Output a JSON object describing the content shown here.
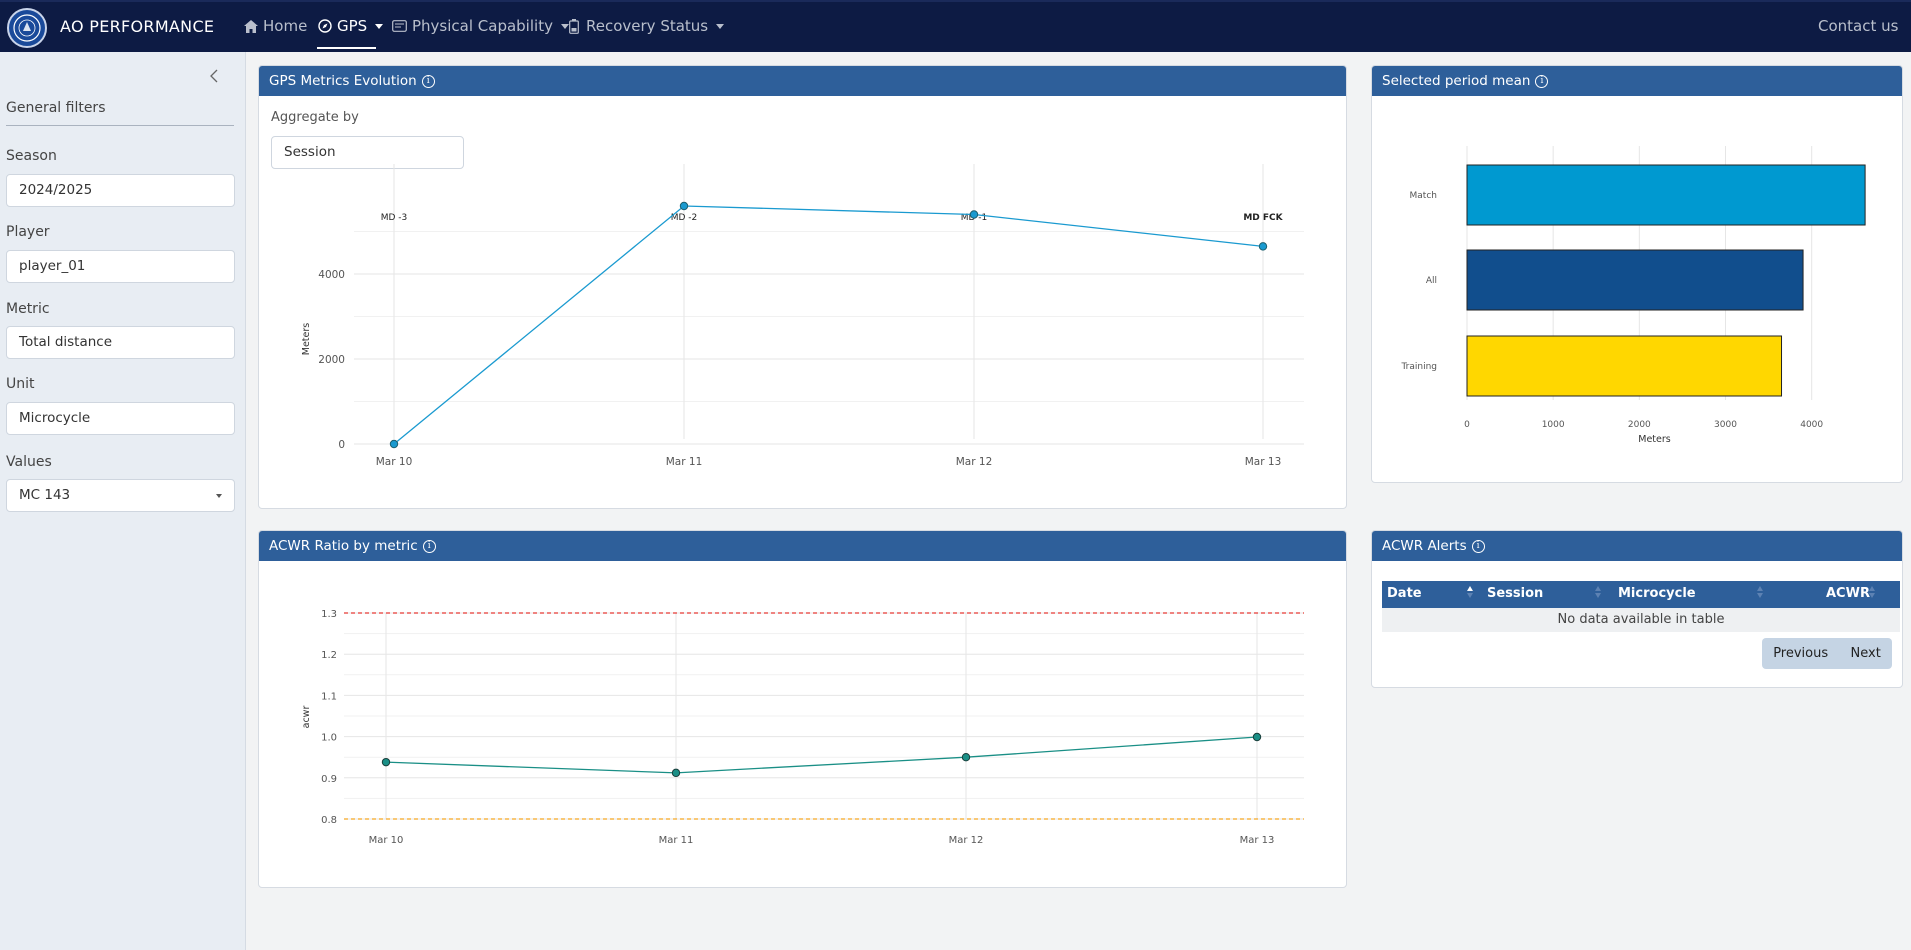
{
  "navbar": {
    "brand": "AO PERFORMANCE",
    "items": [
      {
        "label": "Home"
      },
      {
        "label": "GPS"
      },
      {
        "label": "Physical Capability"
      },
      {
        "label": "Recovery Status"
      }
    ],
    "contact": "Contact us"
  },
  "sidebar": {
    "heading": "General filters",
    "filters": [
      {
        "label": "Season",
        "value": "2024/2025"
      },
      {
        "label": "Player",
        "value": "player_01"
      },
      {
        "label": "Metric",
        "value": "Total distance"
      },
      {
        "label": "Unit",
        "value": "Microcycle"
      },
      {
        "label": "Values",
        "value": "MC 143"
      }
    ]
  },
  "gps_card": {
    "title": "GPS Metrics Evolution",
    "aggregate_label": "Aggregate by",
    "aggregate_value": "Session"
  },
  "mean_card": {
    "title": "Selected period mean"
  },
  "acwr_card": {
    "title": "ACWR Ratio by metric"
  },
  "alerts_card": {
    "title": "ACWR Alerts",
    "columns": [
      "Date",
      "Session",
      "Microcycle",
      "ACWR"
    ],
    "empty_text": "No data available in table",
    "prev": "Previous",
    "next": "Next"
  },
  "colors": {
    "navbar": "#0d1b44",
    "card_header": "#2e5f9a",
    "line": "#1a9ad0",
    "acwr_line": "#1a8f86",
    "bar_match": "#0099d0",
    "bar_all": "#114e8d",
    "bar_training": "#ffd700",
    "upper_threshold": "#e53935",
    "lower_threshold": "#f5a623"
  },
  "chart_data": [
    {
      "type": "line",
      "x": [
        "Mar 10",
        "Mar 11",
        "Mar 12",
        "Mar 13"
      ],
      "annotations": [
        "MD -3",
        "MD -2",
        "MD -1",
        "MD FCK"
      ],
      "series": [
        {
          "values": [
            0,
            5600,
            5400,
            4650
          ]
        }
      ],
      "xlabel": "",
      "ylabel": "Meters",
      "yticks": [
        0,
        2000,
        4000
      ],
      "ylim": [
        0,
        6000
      ]
    },
    {
      "type": "bar",
      "orientation": "horizontal",
      "categories": [
        "Match",
        "All",
        "Training"
      ],
      "values": [
        4620,
        3900,
        3650
      ],
      "xlabel": "Meters",
      "xticks": [
        0,
        1000,
        2000,
        3000,
        4000
      ],
      "xlim": [
        0,
        4700
      ]
    },
    {
      "type": "line",
      "x": [
        "Mar 10",
        "Mar 11",
        "Mar 12",
        "Mar 13"
      ],
      "series": [
        {
          "values": [
            0.938,
            0.912,
            0.95,
            0.999
          ]
        }
      ],
      "ylabel": "acwr",
      "yticks": [
        "0.8",
        "0.9",
        "1.0",
        "1.1",
        "1.2",
        "1.3"
      ],
      "ylim": [
        0.8,
        1.3
      ],
      "thresholds": [
        1.3,
        0.8
      ]
    }
  ]
}
